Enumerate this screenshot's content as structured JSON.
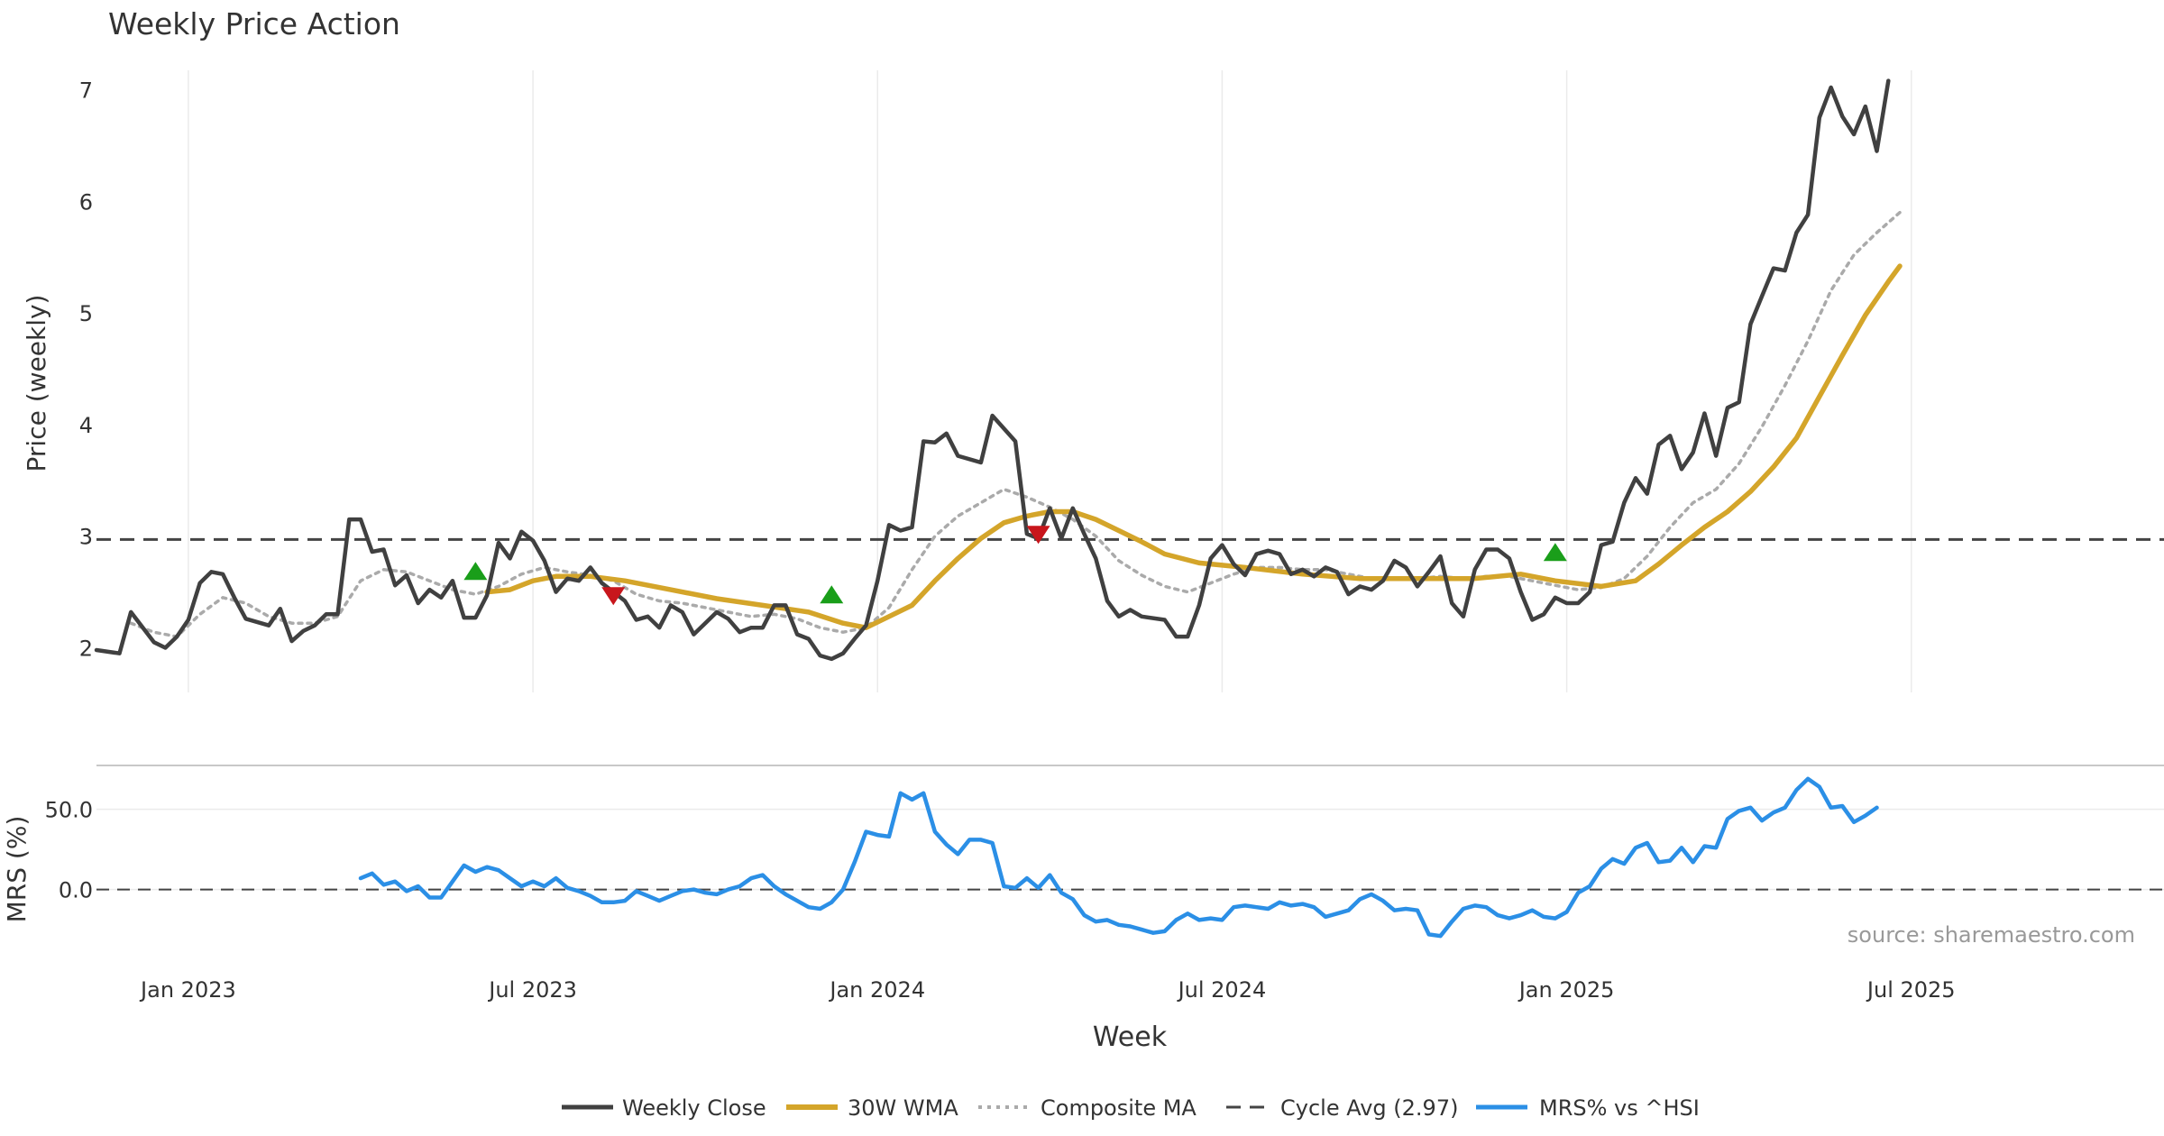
{
  "colors": {
    "close": "#404040",
    "wma": "#d4a52a",
    "composite": "#aaaaaa",
    "cycle": "#444444",
    "mrs": "#2b8fe6",
    "buy": "#1a9e1a",
    "sell": "#c8161c",
    "grid": "#ebebeb",
    "text": "#333333",
    "source": "#999999"
  },
  "chart_data": {
    "type": "line",
    "title": "Weekly Price Action",
    "xlabel": "Week",
    "source": "source: sharemaestro.com",
    "x_ticks": [
      "Jan 2023",
      "Jul 2023",
      "Jan 2024",
      "Jul 2024",
      "Jan 2025",
      "Jul 2025"
    ],
    "x_tick_weeks": [
      8,
      38,
      68,
      98,
      128,
      158
    ],
    "n_weeks": 180,
    "price_panel": {
      "ylabel": "Price (weekly)",
      "ylim": [
        1.6,
        7.4
      ],
      "y_ticks": [
        2,
        3,
        4,
        5,
        6,
        7
      ],
      "cycle_avg": 2.97
    },
    "mrs_panel": {
      "ylabel": "MRS (%)",
      "ylim": [
        -30,
        70
      ],
      "y_ticks": [
        0,
        50
      ],
      "y_tick_labels": [
        "0.0",
        "50.0"
      ],
      "zero_line": 0
    },
    "legend": [
      {
        "label": "Weekly Close",
        "style": "solid-dark"
      },
      {
        "label": "30W WMA",
        "style": "solid-gold"
      },
      {
        "label": "Composite MA",
        "style": "dotted-grey"
      },
      {
        "label": "Cycle Avg (2.97)",
        "style": "dashed-dark"
      },
      {
        "label": "MRS% vs ^HSI",
        "style": "solid-blue"
      }
    ],
    "close_anchors": [
      [
        0,
        1.98
      ],
      [
        2,
        1.95
      ],
      [
        3,
        2.32
      ],
      [
        5,
        2.05
      ],
      [
        6,
        2.0
      ],
      [
        7,
        2.1
      ],
      [
        8,
        2.25
      ],
      [
        9,
        2.58
      ],
      [
        10,
        2.68
      ],
      [
        11,
        2.66
      ],
      [
        12,
        2.45
      ],
      [
        13,
        2.26
      ],
      [
        15,
        2.2
      ],
      [
        16,
        2.35
      ],
      [
        17,
        2.06
      ],
      [
        18,
        2.15
      ],
      [
        19,
        2.2
      ],
      [
        20,
        2.3
      ],
      [
        21,
        2.3
      ],
      [
        22,
        3.15
      ],
      [
        23,
        3.15
      ],
      [
        24,
        2.86
      ],
      [
        25,
        2.88
      ],
      [
        26,
        2.56
      ],
      [
        27,
        2.65
      ],
      [
        28,
        2.4
      ],
      [
        29,
        2.52
      ],
      [
        30,
        2.45
      ],
      [
        31,
        2.6
      ],
      [
        32,
        2.27
      ],
      [
        33,
        2.27
      ],
      [
        34,
        2.47
      ],
      [
        35,
        2.94
      ],
      [
        36,
        2.8
      ],
      [
        37,
        3.04
      ],
      [
        38,
        2.96
      ],
      [
        39,
        2.78
      ],
      [
        40,
        2.5
      ],
      [
        41,
        2.62
      ],
      [
        42,
        2.6
      ],
      [
        43,
        2.72
      ],
      [
        44,
        2.58
      ],
      [
        46,
        2.42
      ],
      [
        47,
        2.25
      ],
      [
        48,
        2.28
      ],
      [
        49,
        2.18
      ],
      [
        50,
        2.38
      ],
      [
        51,
        2.32
      ],
      [
        52,
        2.12
      ],
      [
        53,
        2.22
      ],
      [
        54,
        2.32
      ],
      [
        55,
        2.26
      ],
      [
        56,
        2.14
      ],
      [
        57,
        2.18
      ],
      [
        58,
        2.18
      ],
      [
        59,
        2.38
      ],
      [
        60,
        2.38
      ],
      [
        61,
        2.12
      ],
      [
        62,
        2.08
      ],
      [
        63,
        1.93
      ],
      [
        64,
        1.9
      ],
      [
        65,
        1.95
      ],
      [
        66,
        2.08
      ],
      [
        67,
        2.2
      ],
      [
        68,
        2.6
      ],
      [
        69,
        3.1
      ],
      [
        70,
        3.05
      ],
      [
        71,
        3.08
      ],
      [
        72,
        3.85
      ],
      [
        73,
        3.84
      ],
      [
        74,
        3.92
      ],
      [
        75,
        3.72
      ],
      [
        77,
        3.66
      ],
      [
        78,
        4.08
      ],
      [
        80,
        3.85
      ],
      [
        81,
        3.02
      ],
      [
        82,
        2.98
      ],
      [
        83,
        3.25
      ],
      [
        84,
        2.98
      ],
      [
        85,
        3.25
      ],
      [
        86,
        3.02
      ],
      [
        87,
        2.8
      ],
      [
        88,
        2.42
      ],
      [
        89,
        2.28
      ],
      [
        90,
        2.34
      ],
      [
        91,
        2.28
      ],
      [
        93,
        2.25
      ],
      [
        94,
        2.1
      ],
      [
        95,
        2.1
      ],
      [
        96,
        2.38
      ],
      [
        97,
        2.8
      ],
      [
        98,
        2.92
      ],
      [
        99,
        2.75
      ],
      [
        100,
        2.65
      ],
      [
        101,
        2.84
      ],
      [
        102,
        2.87
      ],
      [
        103,
        2.84
      ],
      [
        104,
        2.66
      ],
      [
        105,
        2.7
      ],
      [
        106,
        2.64
      ],
      [
        107,
        2.72
      ],
      [
        108,
        2.68
      ],
      [
        109,
        2.48
      ],
      [
        110,
        2.55
      ],
      [
        111,
        2.52
      ],
      [
        112,
        2.6
      ],
      [
        113,
        2.78
      ],
      [
        114,
        2.72
      ],
      [
        115,
        2.55
      ],
      [
        116,
        2.68
      ],
      [
        117,
        2.82
      ],
      [
        118,
        2.4
      ],
      [
        119,
        2.28
      ],
      [
        120,
        2.7
      ],
      [
        121,
        2.88
      ],
      [
        122,
        2.88
      ],
      [
        123,
        2.8
      ],
      [
        124,
        2.5
      ],
      [
        125,
        2.25
      ],
      [
        126,
        2.3
      ],
      [
        127,
        2.45
      ],
      [
        128,
        2.4
      ],
      [
        129,
        2.4
      ],
      [
        130,
        2.5
      ],
      [
        131,
        2.92
      ],
      [
        132,
        2.95
      ],
      [
        133,
        3.3
      ],
      [
        134,
        3.52
      ],
      [
        135,
        3.38
      ],
      [
        136,
        3.82
      ],
      [
        137,
        3.9
      ],
      [
        138,
        3.6
      ],
      [
        139,
        3.75
      ],
      [
        140,
        4.1
      ],
      [
        141,
        3.72
      ],
      [
        142,
        4.15
      ],
      [
        143,
        4.2
      ],
      [
        144,
        4.9
      ],
      [
        145,
        5.15
      ],
      [
        146,
        5.4
      ],
      [
        147,
        5.38
      ],
      [
        148,
        5.72
      ],
      [
        149,
        5.88
      ],
      [
        150,
        6.75
      ],
      [
        151,
        7.02
      ],
      [
        152,
        6.76
      ],
      [
        153,
        6.6
      ],
      [
        154,
        6.85
      ],
      [
        155,
        6.45
      ],
      [
        156,
        7.08
      ]
    ],
    "wma_anchors": [
      [
        34,
        2.5
      ],
      [
        36,
        2.52
      ],
      [
        38,
        2.6
      ],
      [
        40,
        2.64
      ],
      [
        43,
        2.64
      ],
      [
        46,
        2.6
      ],
      [
        50,
        2.52
      ],
      [
        54,
        2.44
      ],
      [
        58,
        2.38
      ],
      [
        62,
        2.32
      ],
      [
        65,
        2.22
      ],
      [
        67,
        2.18
      ],
      [
        69,
        2.28
      ],
      [
        71,
        2.38
      ],
      [
        73,
        2.6
      ],
      [
        75,
        2.8
      ],
      [
        77,
        2.98
      ],
      [
        79,
        3.12
      ],
      [
        81,
        3.18
      ],
      [
        83,
        3.22
      ],
      [
        85,
        3.22
      ],
      [
        87,
        3.15
      ],
      [
        89,
        3.05
      ],
      [
        91,
        2.95
      ],
      [
        93,
        2.84
      ],
      [
        96,
        2.76
      ],
      [
        100,
        2.72
      ],
      [
        105,
        2.66
      ],
      [
        110,
        2.62
      ],
      [
        115,
        2.62
      ],
      [
        120,
        2.62
      ],
      [
        124,
        2.66
      ],
      [
        127,
        2.6
      ],
      [
        131,
        2.55
      ],
      [
        134,
        2.6
      ],
      [
        136,
        2.75
      ],
      [
        138,
        2.92
      ],
      [
        140,
        3.08
      ],
      [
        142,
        3.22
      ],
      [
        144,
        3.4
      ],
      [
        146,
        3.62
      ],
      [
        148,
        3.88
      ],
      [
        150,
        4.25
      ],
      [
        152,
        4.62
      ],
      [
        154,
        4.98
      ],
      [
        156,
        5.28
      ],
      [
        157,
        5.42
      ]
    ],
    "composite_anchors": [
      [
        3,
        2.22
      ],
      [
        5,
        2.14
      ],
      [
        7,
        2.1
      ],
      [
        9,
        2.3
      ],
      [
        11,
        2.45
      ],
      [
        13,
        2.4
      ],
      [
        15,
        2.28
      ],
      [
        17,
        2.22
      ],
      [
        19,
        2.22
      ],
      [
        21,
        2.28
      ],
      [
        23,
        2.6
      ],
      [
        25,
        2.7
      ],
      [
        27,
        2.68
      ],
      [
        29,
        2.6
      ],
      [
        31,
        2.52
      ],
      [
        33,
        2.48
      ],
      [
        35,
        2.55
      ],
      [
        37,
        2.66
      ],
      [
        39,
        2.72
      ],
      [
        41,
        2.68
      ],
      [
        43,
        2.65
      ],
      [
        45,
        2.6
      ],
      [
        47,
        2.48
      ],
      [
        49,
        2.42
      ],
      [
        51,
        2.4
      ],
      [
        53,
        2.36
      ],
      [
        55,
        2.32
      ],
      [
        57,
        2.28
      ],
      [
        59,
        2.3
      ],
      [
        61,
        2.26
      ],
      [
        63,
        2.18
      ],
      [
        65,
        2.14
      ],
      [
        67,
        2.18
      ],
      [
        69,
        2.36
      ],
      [
        71,
        2.7
      ],
      [
        73,
        3.0
      ],
      [
        75,
        3.18
      ],
      [
        77,
        3.3
      ],
      [
        79,
        3.42
      ],
      [
        81,
        3.35
      ],
      [
        83,
        3.26
      ],
      [
        85,
        3.15
      ],
      [
        87,
        3.0
      ],
      [
        89,
        2.78
      ],
      [
        91,
        2.65
      ],
      [
        93,
        2.55
      ],
      [
        95,
        2.5
      ],
      [
        97,
        2.58
      ],
      [
        99,
        2.66
      ],
      [
        101,
        2.72
      ],
      [
        103,
        2.72
      ],
      [
        105,
        2.7
      ],
      [
        107,
        2.7
      ],
      [
        109,
        2.66
      ],
      [
        111,
        2.62
      ],
      [
        113,
        2.62
      ],
      [
        115,
        2.62
      ],
      [
        117,
        2.64
      ],
      [
        119,
        2.62
      ],
      [
        121,
        2.64
      ],
      [
        123,
        2.64
      ],
      [
        125,
        2.6
      ],
      [
        127,
        2.56
      ],
      [
        129,
        2.52
      ],
      [
        131,
        2.54
      ],
      [
        133,
        2.62
      ],
      [
        135,
        2.82
      ],
      [
        137,
        3.08
      ],
      [
        139,
        3.3
      ],
      [
        141,
        3.42
      ],
      [
        143,
        3.65
      ],
      [
        145,
        3.98
      ],
      [
        147,
        4.35
      ],
      [
        149,
        4.75
      ],
      [
        151,
        5.2
      ],
      [
        153,
        5.52
      ],
      [
        155,
        5.72
      ],
      [
        157,
        5.9
      ]
    ],
    "mrs_anchors": [
      [
        23,
        7
      ],
      [
        24,
        10
      ],
      [
        25,
        3
      ],
      [
        26,
        5
      ],
      [
        27,
        -1
      ],
      [
        28,
        2
      ],
      [
        29,
        -5
      ],
      [
        30,
        -5
      ],
      [
        31,
        5
      ],
      [
        32,
        15
      ],
      [
        33,
        11
      ],
      [
        34,
        14
      ],
      [
        35,
        12
      ],
      [
        36,
        7
      ],
      [
        37,
        2
      ],
      [
        38,
        5
      ],
      [
        39,
        2
      ],
      [
        40,
        7
      ],
      [
        41,
        1
      ],
      [
        42,
        -1
      ],
      [
        43,
        -4
      ],
      [
        44,
        -8
      ],
      [
        45,
        -8
      ],
      [
        46,
        -7
      ],
      [
        47,
        -1
      ],
      [
        48,
        -4
      ],
      [
        49,
        -7
      ],
      [
        50,
        -4
      ],
      [
        51,
        -1
      ],
      [
        52,
        0
      ],
      [
        53,
        -2
      ],
      [
        54,
        -3
      ],
      [
        55,
        0
      ],
      [
        56,
        2
      ],
      [
        57,
        7
      ],
      [
        58,
        9
      ],
      [
        59,
        2
      ],
      [
        60,
        -3
      ],
      [
        61,
        -7
      ],
      [
        62,
        -11
      ],
      [
        63,
        -12
      ],
      [
        64,
        -8
      ],
      [
        65,
        0
      ],
      [
        66,
        17
      ],
      [
        67,
        36
      ],
      [
        68,
        34
      ],
      [
        69,
        33
      ],
      [
        70,
        60
      ],
      [
        71,
        56
      ],
      [
        72,
        60
      ],
      [
        73,
        36
      ],
      [
        74,
        28
      ],
      [
        75,
        22
      ],
      [
        76,
        31
      ],
      [
        77,
        31
      ],
      [
        78,
        29
      ],
      [
        79,
        2
      ],
      [
        80,
        1
      ],
      [
        81,
        7
      ],
      [
        82,
        1
      ],
      [
        83,
        9
      ],
      [
        84,
        -2
      ],
      [
        85,
        -6
      ],
      [
        86,
        -16
      ],
      [
        87,
        -20
      ],
      [
        88,
        -19
      ],
      [
        89,
        -22
      ],
      [
        90,
        -23
      ],
      [
        91,
        -25
      ],
      [
        92,
        -27
      ],
      [
        93,
        -26
      ],
      [
        94,
        -19
      ],
      [
        95,
        -15
      ],
      [
        96,
        -19
      ],
      [
        97,
        -18
      ],
      [
        98,
        -19
      ],
      [
        99,
        -11
      ],
      [
        100,
        -10
      ],
      [
        101,
        -11
      ],
      [
        102,
        -12
      ],
      [
        103,
        -8
      ],
      [
        104,
        -10
      ],
      [
        105,
        -9
      ],
      [
        106,
        -11
      ],
      [
        107,
        -17
      ],
      [
        108,
        -15
      ],
      [
        109,
        -13
      ],
      [
        110,
        -6
      ],
      [
        111,
        -3
      ],
      [
        112,
        -7
      ],
      [
        113,
        -13
      ],
      [
        114,
        -12
      ],
      [
        115,
        -13
      ],
      [
        116,
        -28
      ],
      [
        117,
        -29
      ],
      [
        118,
        -20
      ],
      [
        119,
        -12
      ],
      [
        120,
        -10
      ],
      [
        121,
        -11
      ],
      [
        122,
        -16
      ],
      [
        123,
        -18
      ],
      [
        124,
        -16
      ],
      [
        125,
        -13
      ],
      [
        126,
        -17
      ],
      [
        127,
        -18
      ],
      [
        128,
        -14
      ],
      [
        129,
        -2
      ],
      [
        130,
        2
      ],
      [
        131,
        13
      ],
      [
        132,
        19
      ],
      [
        133,
        16
      ],
      [
        134,
        26
      ],
      [
        135,
        29
      ],
      [
        136,
        17
      ],
      [
        137,
        18
      ],
      [
        138,
        26
      ],
      [
        139,
        17
      ],
      [
        140,
        27
      ],
      [
        141,
        26
      ],
      [
        142,
        44
      ],
      [
        143,
        49
      ],
      [
        144,
        51
      ],
      [
        145,
        43
      ],
      [
        146,
        48
      ],
      [
        147,
        51
      ],
      [
        148,
        62
      ],
      [
        149,
        69
      ],
      [
        150,
        64
      ],
      [
        151,
        51
      ],
      [
        152,
        52
      ],
      [
        153,
        42
      ],
      [
        154,
        46
      ],
      [
        155,
        51
      ]
    ],
    "buy_signals": [
      [
        33,
        2.68
      ],
      [
        64,
        2.47
      ],
      [
        127,
        2.85
      ]
    ],
    "sell_signals": [
      [
        45,
        2.47
      ],
      [
        82,
        3.02
      ]
    ]
  }
}
